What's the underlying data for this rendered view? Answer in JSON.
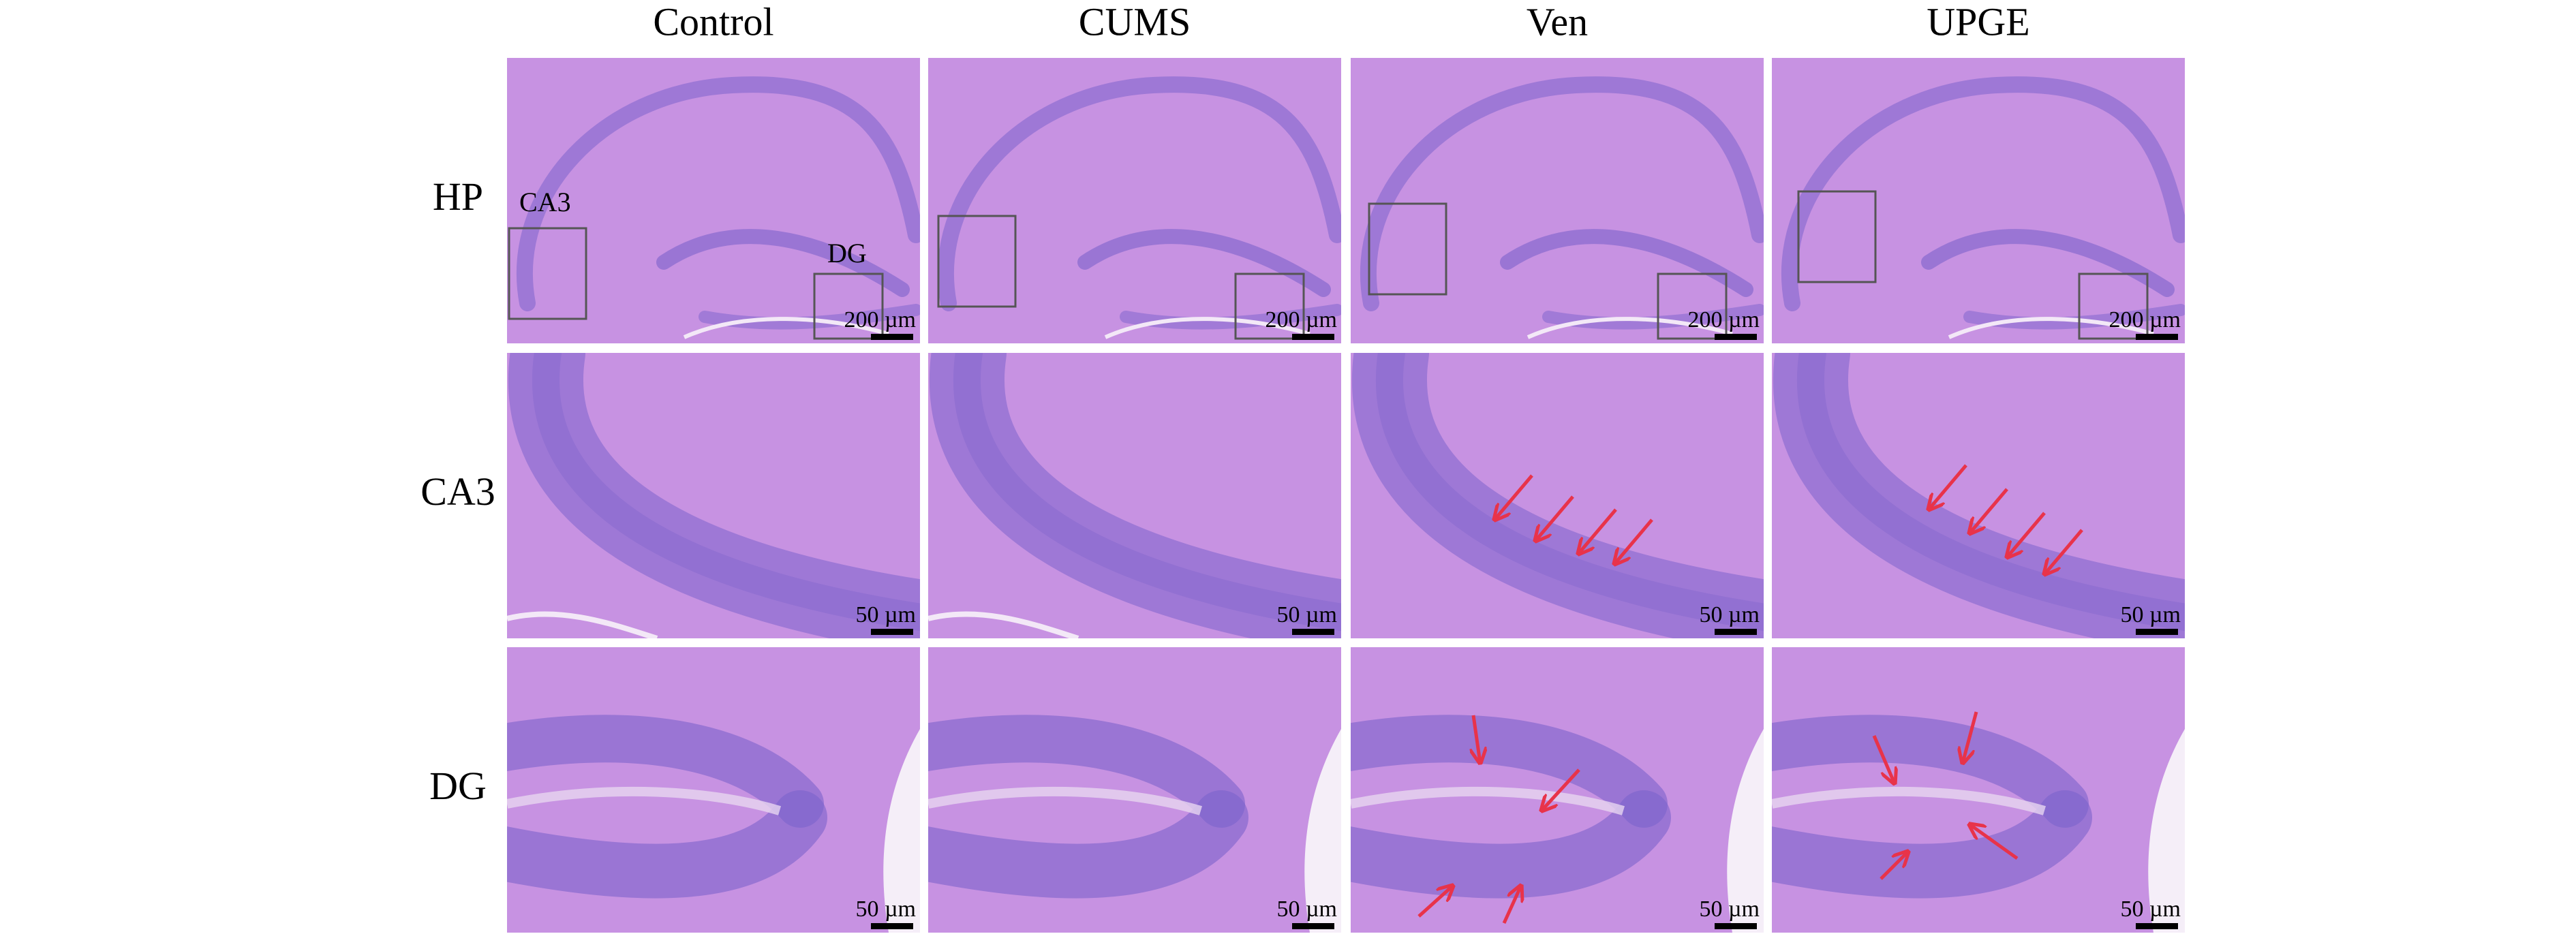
{
  "column_headers": [
    "Control",
    "CUMS",
    "Ven",
    "UPGE"
  ],
  "row_labels": [
    "HP",
    "CA3",
    "DG"
  ],
  "region_labels": [
    "CA3",
    "DG"
  ],
  "panels": [
    [
      {
        "scale_label": "200 µm"
      },
      {
        "scale_label": "200 µm"
      },
      {
        "scale_label": "200 µm"
      },
      {
        "scale_label": "200 µm"
      }
    ],
    [
      {
        "scale_label": "50 µm"
      },
      {
        "scale_label": "50 µm"
      },
      {
        "scale_label": "50 µm"
      },
      {
        "scale_label": "50 µm"
      }
    ],
    [
      {
        "scale_label": "50 µm"
      },
      {
        "scale_label": "50 µm"
      },
      {
        "scale_label": "50 µm"
      },
      {
        "scale_label": "50 µm"
      }
    ]
  ]
}
